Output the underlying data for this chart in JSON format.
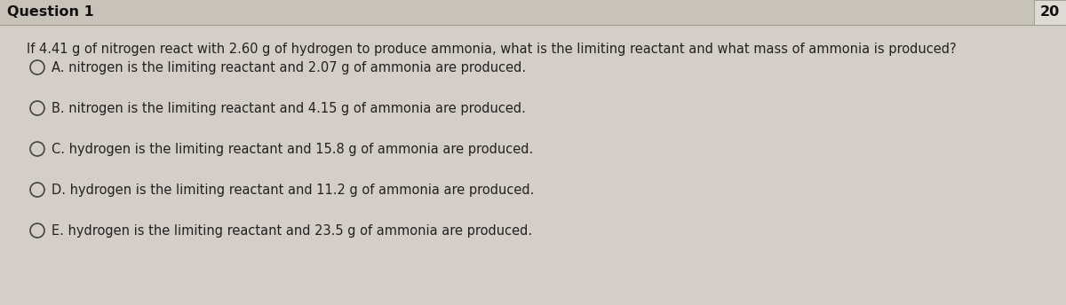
{
  "background_color": "#d4cec6",
  "header_text": "Question 1",
  "points_text": "20",
  "question_text": "If 4.41 g of nitrogen react with 2.60 g of hydrogen to produce ammonia, what is the limiting reactant and what mass of ammonia is produced?",
  "options": [
    "A. nitrogen is the limiting reactant and 2.07 g of ammonia are produced.",
    "B. nitrogen is the limiting reactant and 4.15 g of ammonia are produced.",
    "C. hydrogen is the limiting reactant and 15.8 g of ammonia are produced.",
    "D. hydrogen is the limiting reactant and 11.2 g of ammonia are produced.",
    "E. hydrogen is the limiting reactant and 23.5 g of ammonia are produced."
  ],
  "header_bg": "#c8c2b8",
  "header_line_color": "#999990",
  "text_color": "#222222",
  "header_text_color": "#111111",
  "points_box_color": "#dedad4",
  "font_size_question": 10.5,
  "font_size_options": 10.5,
  "font_size_header": 11.5,
  "circle_color": "#444444",
  "fig_width": 12.0,
  "fig_height": 3.44,
  "dpi": 100
}
